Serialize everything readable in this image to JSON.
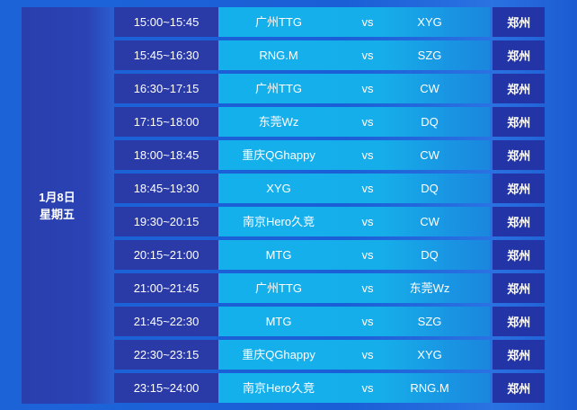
{
  "date": {
    "day": "1月8日",
    "weekday": "星期五"
  },
  "vs_label": "vs",
  "matches": [
    {
      "time": "15:00~15:45",
      "team1": "广州TTG",
      "team2": "XYG",
      "city": "郑州"
    },
    {
      "time": "15:45~16:30",
      "team1": "RNG.M",
      "team2": "SZG",
      "city": "郑州"
    },
    {
      "time": "16:30~17:15",
      "team1": "广州TTG",
      "team2": "CW",
      "city": "郑州"
    },
    {
      "time": "17:15~18:00",
      "team1": "东莞Wz",
      "team2": "DQ",
      "city": "郑州"
    },
    {
      "time": "18:00~18:45",
      "team1": "重庆QGhappy",
      "team2": "CW",
      "city": "郑州"
    },
    {
      "time": "18:45~19:30",
      "team1": "XYG",
      "team2": "DQ",
      "city": "郑州"
    },
    {
      "time": "19:30~20:15",
      "team1": "南京Hero久竞",
      "team2": "CW",
      "city": "郑州"
    },
    {
      "time": "20:15~21:00",
      "team1": "MTG",
      "team2": "DQ",
      "city": "郑州"
    },
    {
      "time": "21:00~21:45",
      "team1": "广州TTG",
      "team2": "东莞Wz",
      "city": "郑州"
    },
    {
      "time": "21:45~22:30",
      "team1": "MTG",
      "team2": "SZG",
      "city": "郑州"
    },
    {
      "time": "22:30~23:15",
      "team1": "重庆QGhappy",
      "team2": "XYG",
      "city": "郑州"
    },
    {
      "time": "23:15~24:00",
      "team1": "南京Hero久竞",
      "team2": "RNG.M",
      "city": "郑州"
    }
  ]
}
